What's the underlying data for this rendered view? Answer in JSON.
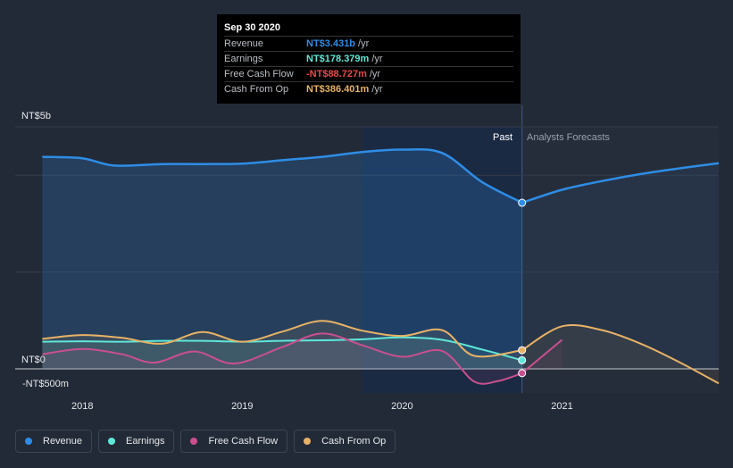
{
  "tooltip": {
    "date": "Sep 30 2020",
    "rows": [
      {
        "label": "Revenue",
        "value": "NT$3.431b",
        "unit": "/yr",
        "color": "#2e8de6"
      },
      {
        "label": "Earnings",
        "value": "NT$178.379m",
        "unit": "/yr",
        "color": "#5ee8d8"
      },
      {
        "label": "Free Cash Flow",
        "value": "-NT$88.727m",
        "unit": "/yr",
        "color": "#e8494a"
      },
      {
        "label": "Cash From Op",
        "value": "NT$386.401m",
        "unit": "/yr",
        "color": "#e8b266"
      }
    ]
  },
  "labels": {
    "past": "Past",
    "forecast": "Analysts Forecasts"
  },
  "legend": [
    {
      "label": "Revenue",
      "color": "#2e8de6"
    },
    {
      "label": "Earnings",
      "color": "#5ee8d8"
    },
    {
      "label": "Free Cash Flow",
      "color": "#c9508f"
    },
    {
      "label": "Cash From Op",
      "color": "#e8b266"
    }
  ],
  "chart_data": {
    "type": "line",
    "unit": "NT$ millions per year",
    "ylim": [
      -500,
      5000
    ],
    "y_tick_labels": [
      {
        "value": 5000,
        "label": "NT$5b"
      },
      {
        "value": 0,
        "label": "NT$0"
      },
      {
        "value": -500,
        "label": "-NT$500m"
      }
    ],
    "x_tick_labels": [
      {
        "value": 2018.0,
        "label": "2018"
      },
      {
        "value": 2019.0,
        "label": "2019"
      },
      {
        "value": 2020.0,
        "label": "2020"
      },
      {
        "value": 2021.0,
        "label": "2021"
      }
    ],
    "xlim": [
      2017.58,
      2021.98
    ],
    "past_end": 2020.75,
    "forecast_band_start": 2019.75,
    "highlight_band": [
      2019.75,
      2020.75
    ],
    "series": [
      {
        "name": "Revenue",
        "color": "#2e8de6",
        "past": [
          [
            2017.75,
            4380
          ],
          [
            2018.0,
            4350
          ],
          [
            2018.2,
            4200
          ],
          [
            2018.5,
            4230
          ],
          [
            2018.75,
            4230
          ],
          [
            2019.0,
            4240
          ],
          [
            2019.25,
            4310
          ],
          [
            2019.5,
            4380
          ],
          [
            2019.75,
            4480
          ],
          [
            2020.0,
            4530
          ],
          [
            2020.25,
            4460
          ],
          [
            2020.5,
            3860
          ],
          [
            2020.75,
            3431
          ]
        ],
        "forecast": [
          [
            2020.75,
            3431
          ],
          [
            2021.0,
            3700
          ],
          [
            2021.25,
            3880
          ],
          [
            2021.5,
            4030
          ],
          [
            2021.75,
            4150
          ],
          [
            2021.98,
            4250
          ]
        ]
      },
      {
        "name": "Earnings",
        "color": "#5ee8d8",
        "past": [
          [
            2017.75,
            560
          ],
          [
            2018.0,
            570
          ],
          [
            2018.25,
            560
          ],
          [
            2018.5,
            580
          ],
          [
            2018.75,
            580
          ],
          [
            2019.0,
            560
          ],
          [
            2019.25,
            580
          ],
          [
            2019.5,
            590
          ],
          [
            2019.75,
            610
          ],
          [
            2020.0,
            650
          ],
          [
            2020.25,
            600
          ],
          [
            2020.5,
            400
          ],
          [
            2020.75,
            178
          ]
        ],
        "forecast": []
      },
      {
        "name": "Free Cash Flow",
        "color": "#c9508f",
        "past": [
          [
            2017.75,
            300
          ],
          [
            2018.0,
            410
          ],
          [
            2018.25,
            300
          ],
          [
            2018.45,
            130
          ],
          [
            2018.7,
            360
          ],
          [
            2018.95,
            110
          ],
          [
            2019.25,
            450
          ],
          [
            2019.5,
            730
          ],
          [
            2019.75,
            490
          ],
          [
            2020.0,
            250
          ],
          [
            2020.25,
            370
          ],
          [
            2020.45,
            -260
          ],
          [
            2020.6,
            -250
          ],
          [
            2020.75,
            -89
          ]
        ],
        "forecast": [
          [
            2020.75,
            -89
          ],
          [
            2021.0,
            600
          ]
        ]
      },
      {
        "name": "Cash From Op",
        "color": "#e8b266",
        "past": [
          [
            2017.75,
            620
          ],
          [
            2018.0,
            700
          ],
          [
            2018.25,
            640
          ],
          [
            2018.5,
            520
          ],
          [
            2018.75,
            760
          ],
          [
            2019.0,
            560
          ],
          [
            2019.25,
            770
          ],
          [
            2019.5,
            990
          ],
          [
            2019.75,
            790
          ],
          [
            2020.0,
            680
          ],
          [
            2020.25,
            800
          ],
          [
            2020.45,
            270
          ],
          [
            2020.75,
            386
          ]
        ],
        "forecast": [
          [
            2020.75,
            386
          ],
          [
            2021.0,
            880
          ],
          [
            2021.25,
            800
          ],
          [
            2021.5,
            510
          ],
          [
            2021.75,
            110
          ],
          [
            2021.98,
            -300
          ]
        ]
      }
    ]
  }
}
